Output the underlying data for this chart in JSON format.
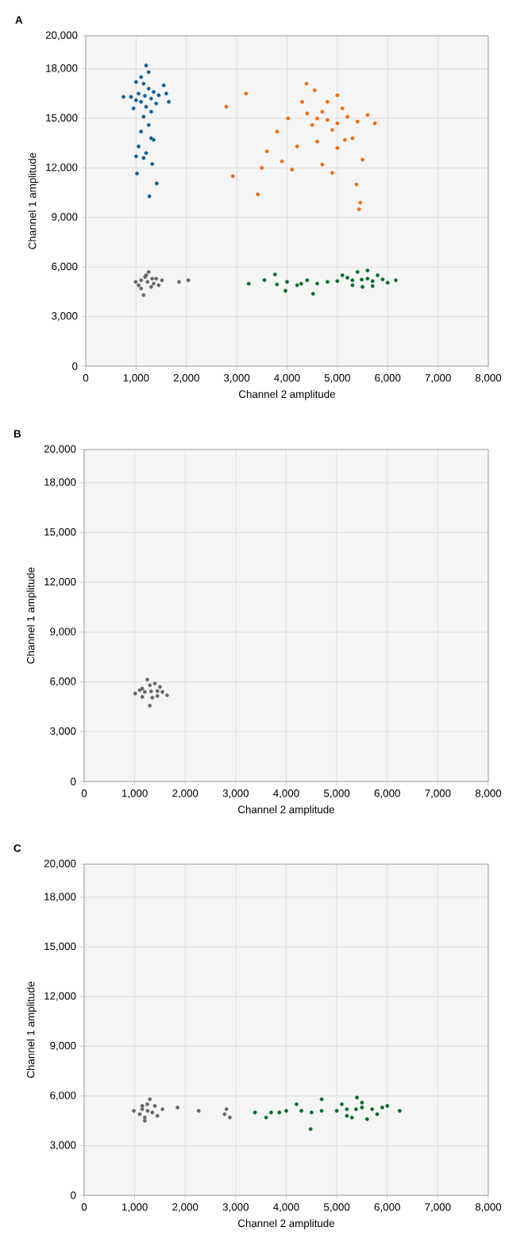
{
  "chart_data": [
    {
      "type": "scatter",
      "title": "**A**",
      "xlabel": "Channel 2 amplitude",
      "ylabel": "Channel 1 amplitude",
      "xlim": [
        0,
        8000
      ],
      "ylim": [
        0,
        20000
      ],
      "grid": true,
      "xticks": [
        0,
        {
          "value": 1000,
          "label": "1,000"
        },
        {
          "value": 2000,
          "label": "2,000"
        },
        {
          "value": 3000,
          "label": "3,000"
        },
        {
          "value": 4000,
          "label": "4,000"
        },
        {
          "value": 5000,
          "label": "5,000"
        },
        {
          "value": 6000,
          "label": "6,000"
        },
        {
          "value": 7000,
          "label": "7,000"
        },
        {
          "value": 8000,
          "label": "8,000"
        }
      ],
      "yticks": [
        0,
        {
          "value": 3000,
          "label": "3,000"
        },
        {
          "value": 6000,
          "label": "6,000"
        },
        {
          "value": 9000,
          "label": "9,000"
        },
        {
          "value": 12000,
          "label": "12,000"
        },
        {
          "value": 15000,
          "label": "15,000"
        },
        {
          "value": 18000,
          "label": "18,000"
        },
        {
          "value": 20000,
          "label": "20,000"
        }
      ],
      "series": [
        {
          "color": "#135e96",
          "x": [
            1175,
            1050,
            1300,
            1100,
            1250,
            1000,
            1350,
            1150,
            1200,
            900,
            1450,
            1100,
            1250,
            1300,
            750,
            1600,
            1550,
            1000,
            1400,
            1200,
            1150,
            1250,
            1100,
            1300,
            1050,
            1350,
            1200,
            1000,
            1150,
            1321,
            1018,
            1410,
            1264,
            1650,
            950
          ],
          "values": [
            16360,
            16500,
            16200,
            16000,
            16800,
            16100,
            16600,
            17100,
            15700,
            16300,
            16400,
            17500,
            17800,
            15400,
            16300,
            16500,
            17000,
            17200,
            15900,
            18200,
            15100,
            14600,
            14200,
            13800,
            13300,
            13700,
            12900,
            12700,
            12600,
            12240,
            11660,
            11060,
            10280,
            16000,
            15600
          ]
        },
        {
          "color": "#ef6c0f",
          "x": [
            4804,
            4600,
            5000,
            4700,
            4900,
            5200,
            4500,
            5100,
            4400,
            5400,
            4800,
            5000,
            4300,
            5600,
            5744,
            4020,
            4600,
            5300,
            4200,
            5000,
            3800,
            3600,
            3900,
            4100,
            4700,
            5500,
            3185,
            2794,
            2924,
            3420,
            5431,
            5457,
            5379,
            4386,
            4550,
            5150,
            3500,
            4900
          ],
          "values": [
            14900,
            15000,
            14700,
            15400,
            14300,
            15100,
            14600,
            15600,
            15300,
            14800,
            16000,
            16400,
            16000,
            15200,
            14700,
            15000,
            13600,
            13800,
            13300,
            13200,
            14200,
            13000,
            12400,
            11900,
            12200,
            12500,
            16500,
            15700,
            11500,
            10400,
            9500,
            9900,
            11000,
            17100,
            16700,
            13700,
            12000,
            11700
          ]
        },
        {
          "color": "#666666",
          "x": [
            1227,
            1100,
            1350,
            1200,
            1300,
            1050,
            1400,
            992,
            1514,
            1250,
            1150,
            1180,
            1320,
            1100,
            1450,
            1854,
            2037
          ],
          "values": [
            5100,
            5200,
            5000,
            5500,
            4800,
            4900,
            5300,
            5100,
            5200,
            5700,
            4300,
            5400,
            5300,
            4700,
            4900,
            5100,
            5200
          ]
        },
        {
          "color": "#0a6b2d",
          "x": [
            5483,
            5300,
            5600,
            5700,
            5200,
            5900,
            6162,
            5000,
            4804,
            5400,
            5600,
            5500,
            5800,
            6000,
            4600,
            4400,
            4200,
            3238,
            3551,
            3760,
            3969,
            4282,
            4517,
            3800,
            4000,
            5100,
            5300,
            5700
          ],
          "values": [
            5240,
            5200,
            5300,
            5150,
            5350,
            5250,
            5200,
            5150,
            5100,
            5700,
            5790,
            4800,
            5500,
            5050,
            5000,
            5200,
            4900,
            4990,
            5210,
            5550,
            4560,
            4990,
            4380,
            4950,
            5100,
            5500,
            4900,
            4850
          ]
        }
      ]
    },
    {
      "type": "scatter",
      "title": "**B**",
      "xlabel": "Channel 2 amplitude",
      "ylabel": "Channel 1 amplitude",
      "xlim": [
        0,
        8000
      ],
      "ylim": [
        0,
        20000
      ],
      "grid": true,
      "xticks": [
        0,
        {
          "value": 1000,
          "label": "1,000"
        },
        {
          "value": 2000,
          "label": "2,000"
        },
        {
          "value": 3000,
          "label": "3,000"
        },
        {
          "value": 4000,
          "label": "4,000"
        },
        {
          "value": 5000,
          "label": "5,000"
        },
        {
          "value": 6000,
          "label": "6,000"
        },
        {
          "value": 7000,
          "label": "7,000"
        },
        {
          "value": 8000,
          "label": "8,000"
        }
      ],
      "yticks": [
        0,
        {
          "value": 3000,
          "label": "3,000"
        },
        {
          "value": 6000,
          "label": "6,000"
        },
        {
          "value": 9000,
          "label": "9,000"
        },
        {
          "value": 12000,
          "label": "12,000"
        },
        {
          "value": 15000,
          "label": "15,000"
        },
        {
          "value": 18000,
          "label": "18,000"
        },
        {
          "value": 20000,
          "label": "20,000"
        }
      ],
      "series": [
        {
          "color": "#666666",
          "x": [
            1325,
            1200,
            1450,
            1300,
            1350,
            1010,
            1640,
            1250,
            1300,
            1150,
            1500,
            1150,
            1450,
            1400,
            1100,
            1550
          ],
          "values": [
            5430,
            5400,
            5450,
            5800,
            5050,
            5300,
            5200,
            6140,
            4570,
            5600,
            5700,
            5100,
            5150,
            5900,
            5500,
            5400
          ]
        }
      ]
    },
    {
      "type": "scatter",
      "title": "**C**",
      "xlabel": "Channel 2 amplitude",
      "ylabel": "Channel 1 amplitude",
      "xlim": [
        0,
        8000
      ],
      "ylim": [
        0,
        20000
      ],
      "grid": true,
      "xticks": [
        0,
        {
          "value": 1000,
          "label": "1,000"
        },
        {
          "value": 2000,
          "label": "2,000"
        },
        {
          "value": 3000,
          "label": "3,000"
        },
        {
          "value": 4000,
          "label": "4,000"
        },
        {
          "value": 5000,
          "label": "5,000"
        },
        {
          "value": 6000,
          "label": "6,000"
        },
        {
          "value": 7000,
          "label": "7,000"
        },
        {
          "value": 8000,
          "label": "8,000"
        }
      ],
      "yticks": [
        0,
        {
          "value": 3000,
          "label": "3,000"
        },
        {
          "value": 6000,
          "label": "6,000"
        },
        {
          "value": 9000,
          "label": "9,000"
        },
        {
          "value": 12000,
          "label": "12,000"
        },
        {
          "value": 15000,
          "label": "15,000"
        },
        {
          "value": 18000,
          "label": "18,000"
        },
        {
          "value": 20000,
          "label": "20,000"
        }
      ],
      "series": [
        {
          "color": "#666666",
          "x": [
            1256,
            1150,
            1350,
            1250,
            1200,
            984,
            1550,
            1300,
            1200,
            1100,
            1400,
            1450,
            1150,
            1848,
            2267,
            2817,
            2885,
            2780
          ],
          "values": [
            5100,
            5200,
            5000,
            5500,
            4700,
            5100,
            5200,
            5800,
            4500,
            4900,
            5400,
            4800,
            5400,
            5300,
            5100,
            5200,
            4700,
            4900
          ]
        },
        {
          "color": "#0a6b2d",
          "x": [
            5382,
            5200,
            5500,
            5700,
            5000,
            5900,
            6246,
            4700,
            5400,
            5300,
            5600,
            5100,
            6000,
            5800,
            4500,
            4300,
            3382,
            3602,
            3864,
            4204,
            4482,
            4702,
            4000,
            3700,
            5500,
            5200
          ],
          "values": [
            5200,
            5200,
            5300,
            5200,
            5100,
            5300,
            5100,
            5100,
            5900,
            4700,
            4600,
            5500,
            5400,
            4900,
            5000,
            5100,
            5000,
            4700,
            5000,
            5500,
            4000,
            5800,
            5100,
            5000,
            5600,
            4800
          ]
        }
      ]
    }
  ]
}
